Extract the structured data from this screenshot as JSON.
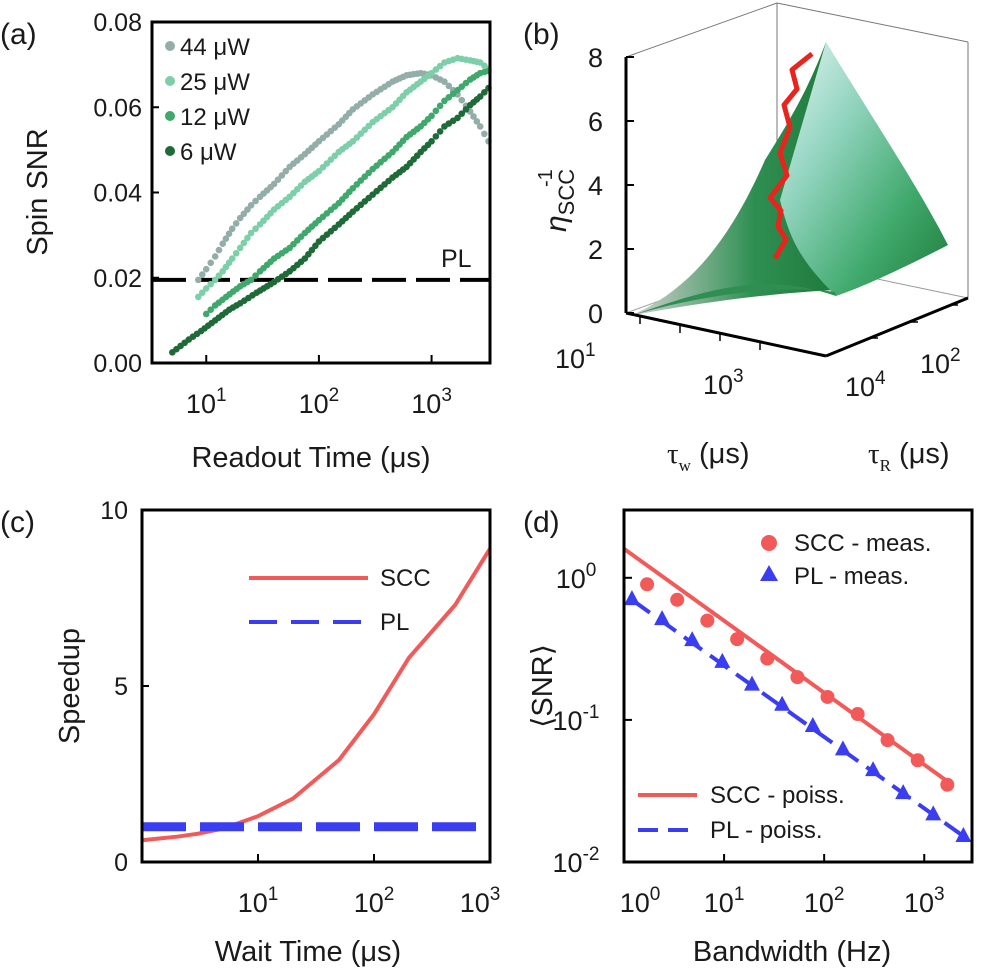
{
  "chart_data": [
    {
      "panel": "(a)",
      "type": "scatter",
      "title": "",
      "xlabel": "Readout Time (μs)",
      "ylabel": "Spin SNR",
      "xscale": "log",
      "xlim": [
        3.3,
        3300
      ],
      "ylim": [
        0.0,
        0.08
      ],
      "yticks": [
        "0.00",
        "0.02",
        "0.04",
        "0.06",
        "0.08"
      ],
      "xticks": [
        {
          "base": "10",
          "exp": "1",
          "value": 10
        },
        {
          "base": "10",
          "exp": "2",
          "value": 100
        },
        {
          "base": "10",
          "exp": "3",
          "value": 1000
        }
      ],
      "legend_location": "top-left",
      "reference_line": {
        "label": "PL",
        "y": 0.0195,
        "style": "dashed"
      },
      "series": [
        {
          "name": "44 μW",
          "color": "#93aea9",
          "points": [
            [
              8.5,
              0.0195
            ],
            [
              10,
              0.022
            ],
            [
              12,
              0.025
            ],
            [
              14,
              0.028
            ],
            [
              17,
              0.0315
            ],
            [
              20,
              0.034
            ],
            [
              25,
              0.037
            ],
            [
              30,
              0.039
            ],
            [
              40,
              0.042
            ],
            [
              55,
              0.046
            ],
            [
              75,
              0.049
            ],
            [
              100,
              0.052
            ],
            [
              150,
              0.056
            ],
            [
              200,
              0.0595
            ],
            [
              300,
              0.063
            ],
            [
              450,
              0.066
            ],
            [
              600,
              0.0675
            ],
            [
              800,
              0.068
            ],
            [
              1000,
              0.0675
            ],
            [
              1300,
              0.066
            ],
            [
              1700,
              0.063
            ],
            [
              2200,
              0.059
            ],
            [
              2700,
              0.0555
            ],
            [
              3200,
              0.052
            ]
          ]
        },
        {
          "name": "25 μW",
          "color": "#7ccfa8",
          "points": [
            [
              8.5,
              0.0155
            ],
            [
              10,
              0.0175
            ],
            [
              12,
              0.0195
            ],
            [
              14,
              0.0215
            ],
            [
              17,
              0.0245
            ],
            [
              20,
              0.027
            ],
            [
              25,
              0.0305
            ],
            [
              30,
              0.0325
            ],
            [
              40,
              0.036
            ],
            [
              55,
              0.039
            ],
            [
              75,
              0.0425
            ],
            [
              100,
              0.045
            ],
            [
              150,
              0.0495
            ],
            [
              200,
              0.052
            ],
            [
              300,
              0.0565
            ],
            [
              450,
              0.06
            ],
            [
              600,
              0.0635
            ],
            [
              800,
              0.066
            ],
            [
              1000,
              0.068
            ],
            [
              1300,
              0.0705
            ],
            [
              1700,
              0.0715
            ],
            [
              2200,
              0.071
            ],
            [
              2700,
              0.0705
            ],
            [
              3200,
              0.069
            ]
          ]
        },
        {
          "name": "12 μW",
          "color": "#3fa86b",
          "points": [
            [
              10,
              0.0115
            ],
            [
              12,
              0.0135
            ],
            [
              15,
              0.0155
            ],
            [
              20,
              0.018
            ],
            [
              25,
              0.0195
            ],
            [
              30,
              0.0215
            ],
            [
              40,
              0.0245
            ],
            [
              55,
              0.027
            ],
            [
              75,
              0.0305
            ],
            [
              100,
              0.0335
            ],
            [
              150,
              0.0375
            ],
            [
              200,
              0.041
            ],
            [
              300,
              0.0455
            ],
            [
              450,
              0.0495
            ],
            [
              600,
              0.053
            ],
            [
              800,
              0.0555
            ],
            [
              1000,
              0.058
            ],
            [
              1300,
              0.0615
            ],
            [
              1700,
              0.064
            ],
            [
              2200,
              0.0665
            ],
            [
              2700,
              0.068
            ],
            [
              3200,
              0.0685
            ]
          ]
        },
        {
          "name": "6 μW",
          "color": "#1e6b38",
          "points": [
            [
              5,
              0.0025
            ],
            [
              7,
              0.0055
            ],
            [
              9,
              0.0075
            ],
            [
              12,
              0.01
            ],
            [
              16,
              0.0125
            ],
            [
              20,
              0.014
            ],
            [
              28,
              0.0165
            ],
            [
              40,
              0.019
            ],
            [
              55,
              0.0215
            ],
            [
              75,
              0.0245
            ],
            [
              100,
              0.0285
            ],
            [
              150,
              0.0325
            ],
            [
              200,
              0.0355
            ],
            [
              300,
              0.0395
            ],
            [
              450,
              0.0435
            ],
            [
              600,
              0.046
            ],
            [
              800,
              0.0495
            ],
            [
              1000,
              0.052
            ],
            [
              1300,
              0.0555
            ],
            [
              1700,
              0.0575
            ],
            [
              2200,
              0.0605
            ],
            [
              2700,
              0.0625
            ],
            [
              3200,
              0.0645
            ]
          ]
        }
      ]
    },
    {
      "panel": "(b)",
      "type": "surface3d",
      "zlabel_main": "η",
      "zlabel_sub": "SCC",
      "zlabel_sup": "-1",
      "zlim": [
        0,
        8
      ],
      "zticks": [
        "0",
        "2",
        "4",
        "6",
        "8"
      ],
      "x_axis": {
        "label_symbol": "τ",
        "label_sub": "w",
        "label_unit": " (μs)",
        "ticks": [
          {
            "base": "10",
            "exp": "1"
          },
          {
            "base": "10",
            "exp": "3"
          }
        ]
      },
      "y_axis": {
        "label_symbol": "τ",
        "label_sub": "R",
        "label_unit": " (μs)",
        "ticks": [
          {
            "base": "10",
            "exp": "2"
          },
          {
            "base": "10",
            "exp": "4"
          }
        ]
      },
      "ridge_line_color": "#e8241c",
      "ridge_z": [
        1.7,
        2.3,
        2.7,
        3.2,
        3.6,
        4.3,
        5.0,
        5.8,
        6.5,
        7.0,
        7.6,
        8.1
      ]
    },
    {
      "panel": "(c)",
      "type": "line",
      "xlabel": "Wait Time (μs)",
      "ylabel": "Speedup",
      "xscale": "log",
      "xlim": [
        1,
        1000
      ],
      "ylim": [
        0,
        10
      ],
      "yticks": [
        "0",
        "5",
        "10"
      ],
      "xticks": [
        {
          "base": "10",
          "exp": "1",
          "value": 10
        },
        {
          "base": "10",
          "exp": "2",
          "value": 100
        },
        {
          "base": "10",
          "exp": "3",
          "value": 1000
        }
      ],
      "legend_location": "upper-center",
      "series": [
        {
          "name": "SCC",
          "color": "#f25a5a",
          "style": "solid",
          "x": [
            1,
            2,
            3,
            5,
            10,
            20,
            50,
            100,
            200,
            500,
            1000
          ],
          "y": [
            0.62,
            0.72,
            0.8,
            0.95,
            1.3,
            1.8,
            2.9,
            4.2,
            5.8,
            7.3,
            8.9
          ]
        },
        {
          "name": "PL",
          "color": "#3a3df0",
          "style": "dashed",
          "x": [
            1,
            1000
          ],
          "y": [
            1.0,
            1.0
          ]
        }
      ]
    },
    {
      "panel": "(d)",
      "type": "scatter",
      "xlabel": "Bandwidth (Hz)",
      "ylabel": "⟨SNR⟩",
      "xscale": "log",
      "yscale": "log",
      "xlim": [
        1,
        3000
      ],
      "ylim": [
        0.01,
        3
      ],
      "xticks": [
        {
          "base": "10",
          "exp": "0",
          "value": 1
        },
        {
          "base": "10",
          "exp": "1",
          "value": 10
        },
        {
          "base": "10",
          "exp": "2",
          "value": 100
        },
        {
          "base": "10",
          "exp": "3",
          "value": 1000
        }
      ],
      "yticks": [
        {
          "base": "10",
          "exp": "-2",
          "value": 0.01
        },
        {
          "base": "10",
          "exp": "-1",
          "value": 0.1
        },
        {
          "base": "10",
          "exp": "0",
          "value": 1
        }
      ],
      "legend_top_location": "top-right",
      "legend_bottom_location": "bottom-left",
      "series": [
        {
          "name": "SCC - meas.",
          "color": "#f25a5a",
          "marker": "circle",
          "x": [
            1.7,
            3.4,
            6.8,
            13.5,
            27,
            54,
            108,
            216,
            430,
            860,
            1700
          ],
          "y": [
            0.9,
            0.7,
            0.5,
            0.37,
            0.27,
            0.2,
            0.145,
            0.11,
            0.072,
            0.052,
            0.035
          ]
        },
        {
          "name": "PL - meas.",
          "color": "#3a3df0",
          "marker": "triangle",
          "x": [
            1.2,
            2.4,
            4.8,
            9.6,
            19,
            38,
            77,
            154,
            308,
            616,
            1230,
            2460
          ],
          "y": [
            0.72,
            0.52,
            0.37,
            0.26,
            0.18,
            0.13,
            0.092,
            0.063,
            0.045,
            0.031,
            0.022,
            0.0155
          ]
        },
        {
          "name": "SCC - poiss.",
          "color": "#f25a5a",
          "style": "solid",
          "x": [
            1,
            1700
          ],
          "y": [
            1.6,
            0.037
          ]
        },
        {
          "name": "PL - poiss.",
          "color": "#3a3df0",
          "style": "dashed",
          "x": [
            1.2,
            2700
          ],
          "y": [
            0.7,
            0.0145
          ]
        }
      ]
    }
  ]
}
